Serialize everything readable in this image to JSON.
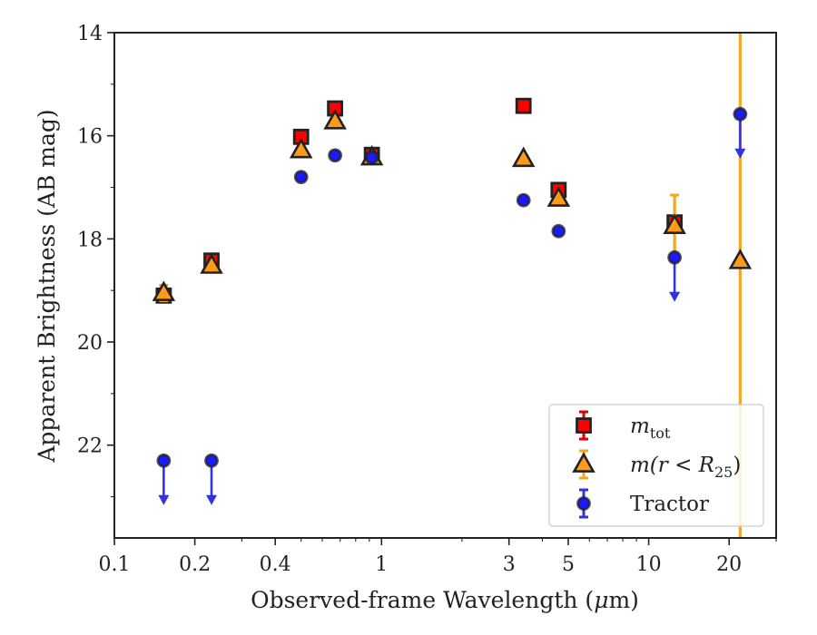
{
  "chart_data": {
    "type": "scatter",
    "xlabel_parts": {
      "before": "Observed-frame Wavelength (",
      "mu": "μ",
      "after": "m)"
    },
    "ylabel": "Apparent Brightness (AB mag)",
    "xscale": "log",
    "xlim": [
      0.1,
      30
    ],
    "ylim": [
      23.8,
      14
    ],
    "y_inverted": true,
    "grid": false,
    "x_ticks": [
      0.1,
      0.2,
      0.4,
      1,
      3,
      5,
      10,
      20
    ],
    "x_tick_labels": [
      "0.1",
      "0.2",
      "0.4",
      "1",
      "3",
      "5",
      "10",
      "20"
    ],
    "y_ticks": [
      14,
      16,
      18,
      20,
      22
    ],
    "y_tick_labels": [
      "14",
      "16",
      "18",
      "20",
      "22"
    ],
    "legend_position": "lower-right",
    "series": [
      {
        "legend_main": "m",
        "legend_sub": "tot",
        "marker": "square",
        "color": "#ff0000",
        "errcolor": "#e00000",
        "points": [
          {
            "x": 0.153,
            "y": 19.1,
            "err": 0.12
          },
          {
            "x": 0.231,
            "y": 18.42,
            "err": 0.08
          },
          {
            "x": 0.5,
            "y": 16.02,
            "err": 0.05
          },
          {
            "x": 0.67,
            "y": 15.47,
            "err": 0.05
          },
          {
            "x": 0.92,
            "y": 16.37,
            "err": 0.05
          },
          {
            "x": 3.4,
            "y": 15.42,
            "err": 0.05
          },
          {
            "x": 4.6,
            "y": 17.05,
            "err": 0.06
          },
          {
            "x": 12.5,
            "y": 17.68,
            "err": 0.08
          }
        ]
      },
      {
        "legend_main": "m(r < R",
        "legend_sub": "25",
        "legend_close": ")",
        "marker": "triangle",
        "color": "#ff9a1a",
        "errcolor": "#f5a623",
        "points": [
          {
            "x": 0.153,
            "y": 19.05,
            "err": 0.15
          },
          {
            "x": 0.231,
            "y": 18.52,
            "err": 0.08
          },
          {
            "x": 0.5,
            "y": 16.28,
            "err": 0.05
          },
          {
            "x": 0.67,
            "y": 15.72,
            "err": 0.05
          },
          {
            "x": 0.92,
            "y": 16.42,
            "err": 0.05
          },
          {
            "x": 3.4,
            "y": 16.45,
            "err": 0.05
          },
          {
            "x": 4.6,
            "y": 17.22,
            "err": 0.06
          },
          {
            "x": 12.5,
            "y": 17.75,
            "err": 0.6
          },
          {
            "x": 22.0,
            "y": 18.43,
            "err": 30
          }
        ]
      },
      {
        "legend_main": "Tractor",
        "marker": "circle",
        "color": "#1a1aff",
        "errcolor": "#3333dd",
        "points": [
          {
            "x": 0.153,
            "y": 22.3,
            "err": 0.03,
            "upper_limit": true
          },
          {
            "x": 0.231,
            "y": 22.3,
            "err": 0.03,
            "upper_limit": true
          },
          {
            "x": 0.5,
            "y": 16.8,
            "err": 0.03
          },
          {
            "x": 0.67,
            "y": 16.38,
            "err": 0.03
          },
          {
            "x": 0.92,
            "y": 16.42,
            "err": 0.03
          },
          {
            "x": 3.4,
            "y": 17.25,
            "err": 0.03
          },
          {
            "x": 4.6,
            "y": 17.85,
            "err": 0.03
          },
          {
            "x": 12.5,
            "y": 18.36,
            "err": 0.03,
            "upper_limit": true
          },
          {
            "x": 22.0,
            "y": 15.58,
            "err": 0.03,
            "upper_limit": true
          }
        ]
      }
    ]
  }
}
